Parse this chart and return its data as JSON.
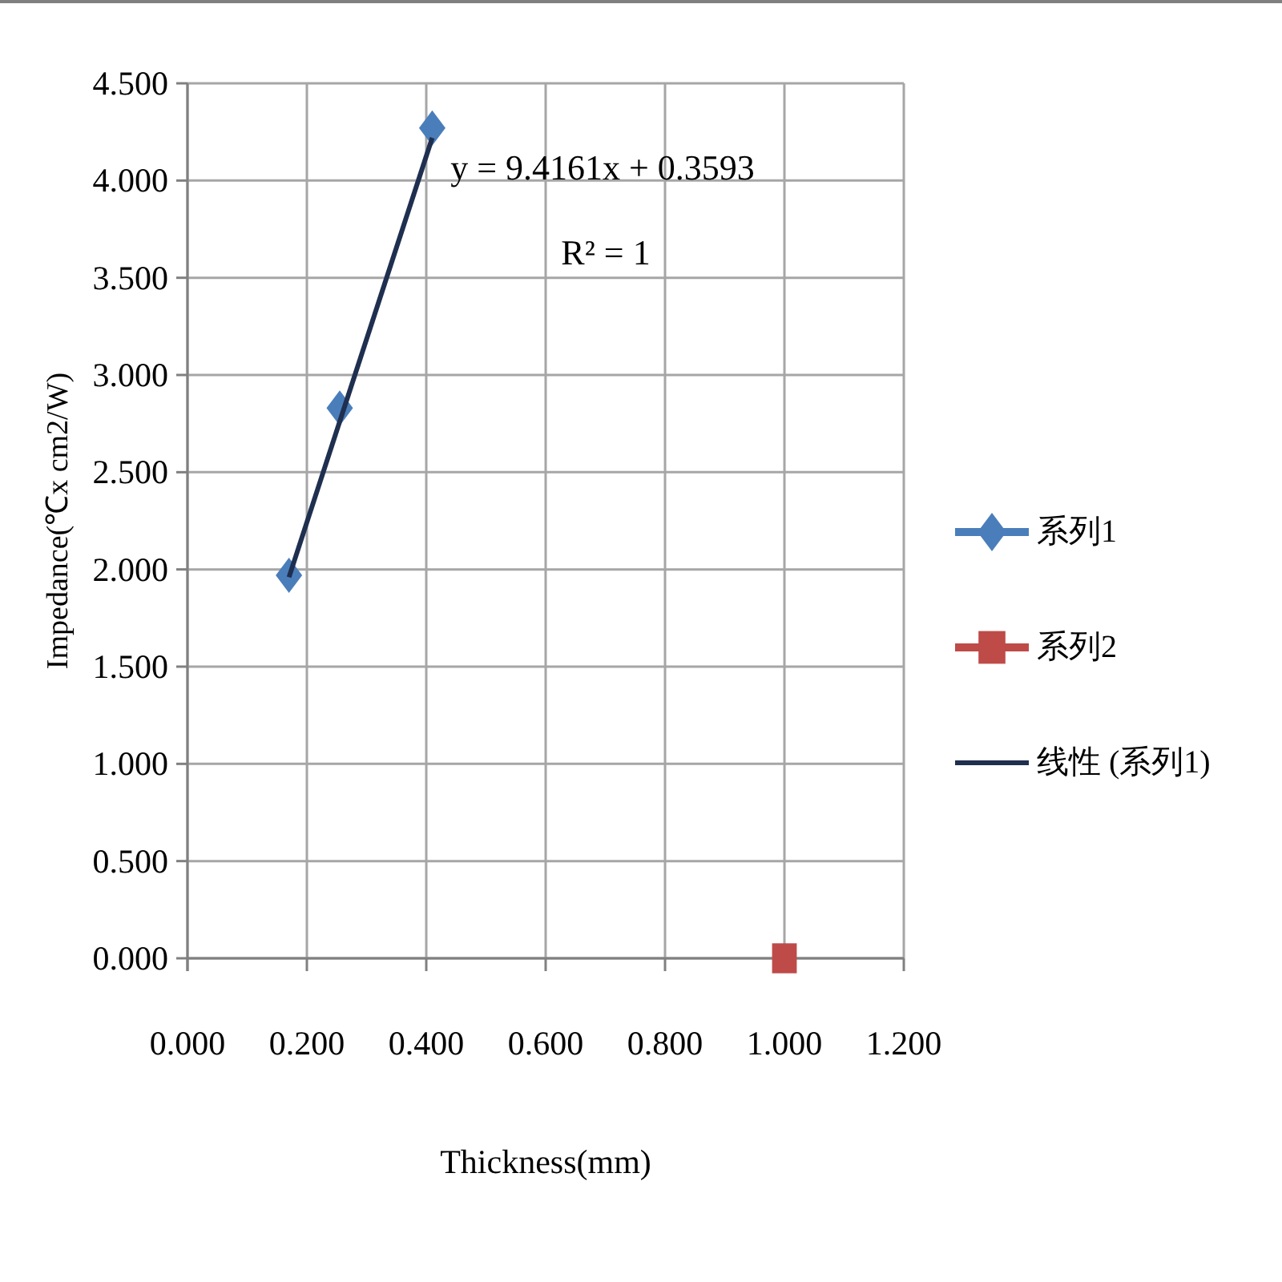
{
  "chart_data": {
    "type": "scatter",
    "xlabel": "Thickness(mm)",
    "ylabel": "Impedance(℃x cm2/W)",
    "xlim": [
      0,
      1.2
    ],
    "xticks": [
      {
        "value": 0,
        "label": "0.000"
      },
      {
        "value": 0.2,
        "label": "0.200"
      },
      {
        "value": 0.4,
        "label": "0.400"
      },
      {
        "value": 0.6,
        "label": "0.600"
      },
      {
        "value": 0.8,
        "label": "0.800"
      },
      {
        "value": 1,
        "label": "1.000"
      },
      {
        "value": 1.2,
        "label": "1.200"
      }
    ],
    "ylim": [
      0,
      4.5
    ],
    "yticks": [
      {
        "value": 0,
        "label": "0.000"
      },
      {
        "value": 0.5,
        "label": "0.500"
      },
      {
        "value": 1,
        "label": "1.000"
      },
      {
        "value": 1.5,
        "label": "1.500"
      },
      {
        "value": 2,
        "label": "2.000"
      },
      {
        "value": 2.5,
        "label": "2.500"
      },
      {
        "value": 3,
        "label": "3.000"
      },
      {
        "value": 3.5,
        "label": "3.500"
      },
      {
        "value": 4,
        "label": "4.000"
      },
      {
        "value": 4.5,
        "label": "4.500"
      }
    ],
    "grid": true,
    "legend": "right",
    "annotations": [
      "y = 9.4161x + 0.3593",
      "R² = 1"
    ],
    "series": [
      {
        "name": "系列1",
        "type": "scatter",
        "marker": "diamond",
        "color": "#4a7ebb",
        "x": [
          0.17,
          0.255,
          0.41
        ],
        "values": [
          1.97,
          2.83,
          4.27
        ]
      },
      {
        "name": "系列2",
        "type": "scatter",
        "marker": "square",
        "color": "#be4b48",
        "x": [
          1
        ],
        "values": [
          0
        ]
      },
      {
        "name": "线性 (系列1)",
        "type": "line",
        "marker": "none",
        "color": "#1f2f4f",
        "x": [
          0.17,
          0.41
        ],
        "values": [
          1.96,
          4.22
        ]
      }
    ]
  }
}
